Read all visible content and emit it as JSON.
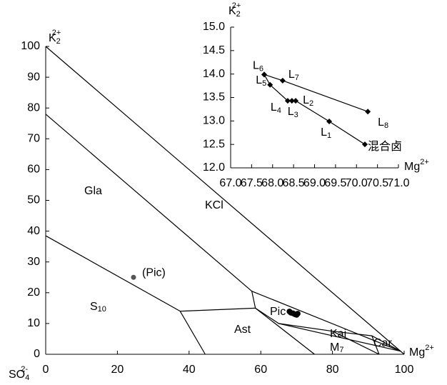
{
  "chart_data": [
    {
      "type": "line",
      "xlim": [
        0,
        100
      ],
      "ylim": [
        0,
        100
      ],
      "xticks": [
        0,
        20,
        40,
        60,
        80,
        100
      ],
      "yticks": [
        0,
        10,
        20,
        30,
        40,
        50,
        60,
        70,
        80,
        90,
        100
      ],
      "x_label": {
        "text": "Mg",
        "sup": "2+"
      },
      "y_label": {
        "text": "K",
        "sub": "2",
        "sup": "2+"
      },
      "origin_label": {
        "text": "SO",
        "sub": "4",
        "sup": "2-"
      },
      "line_color": "#000000",
      "series": [
        {
          "x": [
            0,
            100
          ],
          "y": [
            100,
            0
          ]
        },
        {
          "x": [
            0,
            57.5
          ],
          "y": [
            78,
            20.5
          ]
        },
        {
          "x": [
            0,
            37.5
          ],
          "y": [
            38.5,
            14
          ]
        },
        {
          "x": [
            37.5,
            58.5
          ],
          "y": [
            14,
            15
          ]
        },
        {
          "x": [
            37.5,
            44.5
          ],
          "y": [
            14,
            0
          ]
        },
        {
          "x": [
            57.5,
            58.5
          ],
          "y": [
            20.5,
            15
          ]
        },
        {
          "x": [
            58.5,
            75
          ],
          "y": [
            15,
            0
          ]
        },
        {
          "x": [
            57.5,
            99
          ],
          "y": [
            20.5,
            1
          ]
        },
        {
          "x": [
            58.5,
            65,
            99
          ],
          "y": [
            15,
            10,
            1
          ]
        },
        {
          "x": [
            65,
            80,
            93
          ],
          "y": [
            10,
            7.5,
            0
          ]
        },
        {
          "x": [
            80,
            91,
            99
          ],
          "y": [
            7.5,
            6,
            1
          ]
        },
        {
          "x": [
            91,
            93
          ],
          "y": [
            6,
            0
          ]
        }
      ],
      "points": {
        "color": "#000000",
        "x": [
          68,
          68.4,
          69,
          69.5,
          70,
          70.3
        ],
        "y": [
          13.9,
          13.5,
          13.3,
          13,
          12.8,
          13.2
        ]
      },
      "pic_point": {
        "x": 24.5,
        "y": 25,
        "label": "(Pic)",
        "color": "#555555"
      },
      "regions": [
        {
          "text": "Gla"
        },
        {
          "text": "KCl"
        },
        {
          "text": "S",
          "sub": "10"
        },
        {
          "text": "Pic"
        },
        {
          "text": "Ast"
        },
        {
          "text": "Kai"
        },
        {
          "text": "M",
          "sub": "7"
        },
        {
          "text": "Car"
        }
      ]
    },
    {
      "type": "line",
      "xlim": [
        67,
        71
      ],
      "ylim": [
        12,
        15
      ],
      "xticks": [
        {
          "value": 67,
          "label": "67.0"
        },
        67.5,
        {
          "value": 68,
          "label": "68.0"
        },
        68.5,
        {
          "value": 69,
          "label": "69.0"
        },
        69.5,
        {
          "value": 70,
          "label": "70.0"
        },
        70.5,
        {
          "value": 71,
          "label": "71.0"
        }
      ],
      "yticks": [
        {
          "value": 12,
          "label": "12.0"
        },
        12.5,
        {
          "value": 13,
          "label": "13.0"
        },
        13.5,
        {
          "value": 14,
          "label": "14.0"
        },
        14.5,
        {
          "value": 15,
          "label": "15.0"
        }
      ],
      "x_label": {
        "text": "Mg",
        "sup": "2+"
      },
      "y_label": {
        "text": "K",
        "sub": "2",
        "sup": "2+"
      },
      "color": "#000000",
      "series": [
        {
          "x": [
            67.8,
            68.24,
            70.27
          ],
          "y": [
            13.99,
            13.86,
            13.2
          ],
          "labels": [
            {
              "text": "L",
              "sub": "6"
            },
            {
              "text": "L",
              "sub": "7"
            },
            {
              "text": "L",
              "sub": "8"
            }
          ]
        },
        {
          "x": [
            67.8,
            67.94,
            68.36,
            68.46,
            68.55,
            69.35,
            70.2
          ],
          "y": [
            13.99,
            13.77,
            13.43,
            13.43,
            13.43,
            12.99,
            12.5
          ],
          "labels": [
            null,
            {
              "text": "L",
              "sub": "5"
            },
            {
              "text": "L",
              "sub": "4"
            },
            {
              "text": "L",
              "sub": "3"
            },
            {
              "text": "L",
              "sub": "2"
            },
            {
              "text": "L",
              "sub": "1"
            },
            {
              "text": "混合卤"
            }
          ]
        }
      ]
    }
  ]
}
